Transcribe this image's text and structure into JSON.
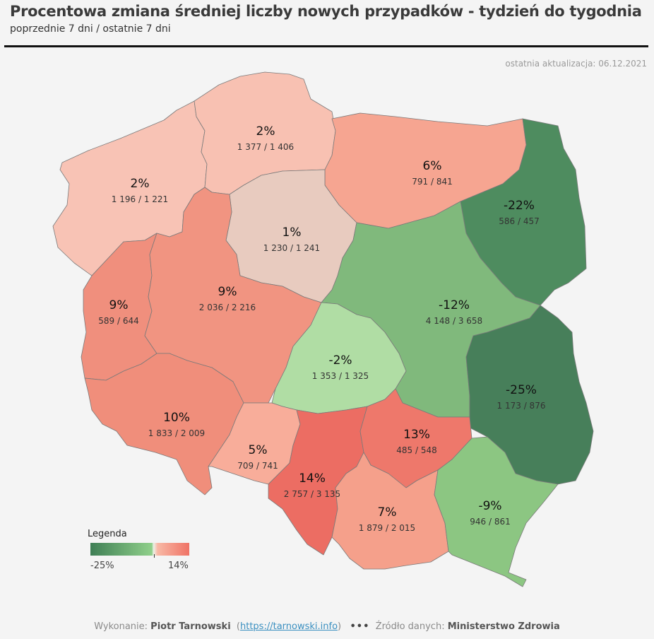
{
  "header": {
    "title": "Procentowa zmiana średniej liczby nowych przypadków - tydzień do tygodnia",
    "subtitle": "poprzednie  7 dni / ostatnie 7 dni",
    "updated": "ostatnia aktualizacja: 06.12.2021"
  },
  "regions": [
    {
      "key": "zachodniopomorskie",
      "pct": "2%",
      "counts": "1 196 / 1 221",
      "color": "#f8c3b5"
    },
    {
      "key": "pomorskie",
      "pct": "2%",
      "counts": "1 377 / 1 406",
      "color": "#f8c1b2"
    },
    {
      "key": "warminsko-mazurskie",
      "pct": "6%",
      "counts": "791 / 841",
      "color": "#f6a591"
    },
    {
      "key": "podlaskie",
      "pct": "-22%",
      "counts": "586 / 457",
      "color": "#4e8c5f"
    },
    {
      "key": "kujawsko-pomorskie",
      "pct": "1%",
      "counts": "1 230 / 1 241",
      "color": "#e8cbbf"
    },
    {
      "key": "lubuskie",
      "pct": "9%",
      "counts": "589 / 644",
      "color": "#f08f7d"
    },
    {
      "key": "wielkopolskie",
      "pct": "9%",
      "counts": "2 036 / 2 216",
      "color": "#f19481"
    },
    {
      "key": "mazowieckie",
      "pct": "-12%",
      "counts": "4 148 / 3 658",
      "color": "#80b97c"
    },
    {
      "key": "lodzkie",
      "pct": "-2%",
      "counts": "1 353 / 1 325",
      "color": "#b0dda4"
    },
    {
      "key": "lubelskie",
      "pct": "-25%",
      "counts": "1 173 / 876",
      "color": "#477f5a"
    },
    {
      "key": "dolnoslaskie",
      "pct": "10%",
      "counts": "1 833 / 2 009",
      "color": "#f08e7b"
    },
    {
      "key": "opolskie",
      "pct": "5%",
      "counts": "709 / 741",
      "color": "#f8ad9a"
    },
    {
      "key": "slaskie",
      "pct": "14%",
      "counts": "2 757 / 3 135",
      "color": "#ec6d63"
    },
    {
      "key": "swietokrzyskie",
      "pct": "13%",
      "counts": "485 / 548",
      "color": "#ee786b"
    },
    {
      "key": "malopolskie",
      "pct": "7%",
      "counts": "1 879 / 2 015",
      "color": "#f5a08b"
    },
    {
      "key": "podkarpackie",
      "pct": "-9%",
      "counts": "946 / 861",
      "color": "#8cc682"
    }
  ],
  "legend": {
    "title": "Legenda",
    "min": "-25%",
    "max": "14%"
  },
  "footer": {
    "prefix": "Wykonanie: ",
    "author": "Piotr Tarnowski",
    "link": "https://tarnowski.info",
    "dots": "•••",
    "source_prefix": "Źródło danych: ",
    "source": "Ministerstwo Zdrowia"
  }
}
